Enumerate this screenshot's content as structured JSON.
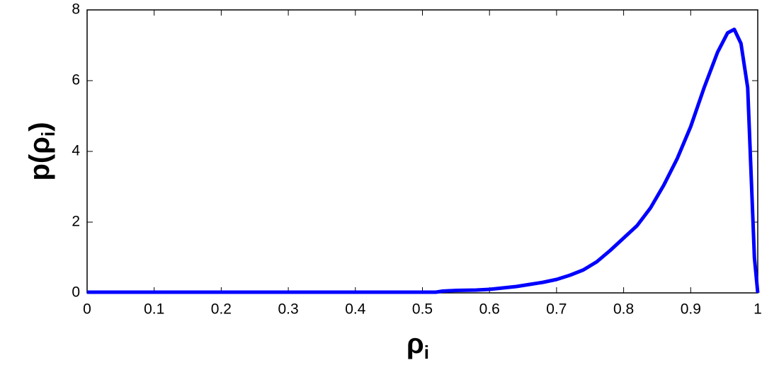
{
  "chart_data": {
    "type": "line",
    "xlabel": [
      "ρ",
      "i"
    ],
    "ylabel": [
      "p(ρ",
      "i",
      ")"
    ],
    "x": [
      0,
      0.52,
      0.53,
      0.55,
      0.58,
      0.6,
      0.62,
      0.64,
      0.66,
      0.68,
      0.7,
      0.72,
      0.74,
      0.76,
      0.78,
      0.8,
      0.82,
      0.84,
      0.86,
      0.88,
      0.9,
      0.92,
      0.94,
      0.955,
      0.965,
      0.975,
      0.985,
      0.995,
      1.0
    ],
    "series": [
      {
        "color": "#0000ff",
        "values": [
          0.02,
          0.02,
          0.05,
          0.07,
          0.08,
          0.1,
          0.14,
          0.18,
          0.24,
          0.3,
          0.38,
          0.5,
          0.65,
          0.88,
          1.2,
          1.55,
          1.9,
          2.4,
          3.05,
          3.8,
          4.7,
          5.8,
          6.8,
          7.35,
          7.45,
          7.05,
          5.8,
          1.0,
          0
        ]
      }
    ],
    "xlim": [
      0,
      1
    ],
    "xticks": [
      0,
      0.1,
      0.2,
      0.3,
      0.4,
      0.5,
      0.6,
      0.7,
      0.8,
      0.9,
      1
    ],
    "ylim": [
      0,
      8
    ],
    "yticks": [
      0,
      2,
      4,
      6,
      8
    ],
    "grid": false
  }
}
